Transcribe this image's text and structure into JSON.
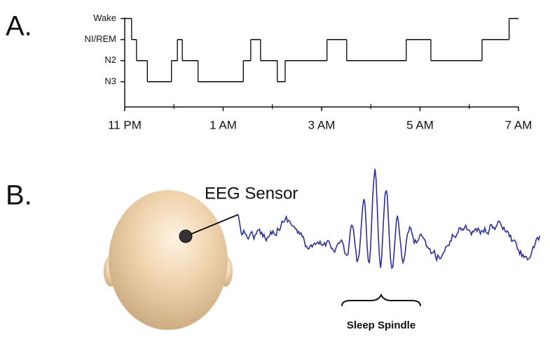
{
  "panels": [
    {
      "label": "A."
    },
    {
      "label": "B."
    }
  ],
  "chart_data": {
    "type": "step",
    "x": [
      0,
      0.14,
      0.24,
      0.46,
      0.95,
      1.07,
      1.17,
      1.49,
      2.41,
      2.56,
      2.76,
      3.1,
      3.26,
      4.11,
      4.51,
      5.72,
      6.22,
      7.26,
      7.81
    ],
    "values": [
      3,
      2,
      1,
      0,
      1,
      2,
      1,
      0,
      1,
      2,
      1,
      0,
      1,
      2,
      1,
      2,
      1,
      2,
      3
    ],
    "color": "#000000",
    "xlim": [
      0,
      8
    ],
    "xticks": [
      {
        "value": 0,
        "label": "11 PM"
      },
      {
        "value": 2,
        "label": "1 AM"
      },
      {
        "value": 4,
        "label": "3 AM"
      },
      {
        "value": 6,
        "label": "5 AM"
      },
      {
        "value": 8,
        "label": "7 AM"
      }
    ],
    "xminor_ticks": [
      1,
      3,
      5,
      7
    ],
    "ylim": [
      -1.2,
      3.05
    ],
    "yticks": [
      {
        "value": 3,
        "label": "Wake"
      },
      {
        "value": 2,
        "label": "NI/REM"
      },
      {
        "value": 1,
        "label": "N2"
      },
      {
        "value": 0,
        "label": "N3"
      }
    ]
  },
  "diagram": {
    "sensor_label": "EEG Sensor",
    "spindle_label": "Sleep Spindle",
    "wave_color": "#2b2f9e",
    "spindle_label_color": "#e8262b"
  }
}
